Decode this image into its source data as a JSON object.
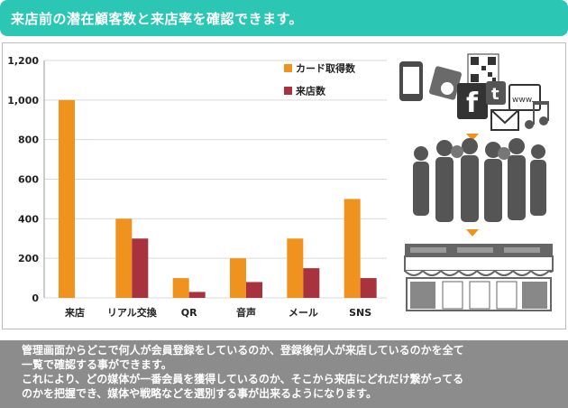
{
  "header": {
    "title": "来店前の潜在顧客数と来店率を確認できます。"
  },
  "chart_data": {
    "type": "bar",
    "categories": [
      "来店",
      "リアル交換",
      "QR",
      "音声",
      "メール",
      "SNS"
    ],
    "series": [
      {
        "name": "カード取得数",
        "color": "#f0931e",
        "values": [
          1000,
          400,
          100,
          200,
          300,
          500
        ]
      },
      {
        "name": "来店数",
        "color": "#a8323e",
        "values": [
          0,
          300,
          30,
          80,
          150,
          100
        ]
      }
    ],
    "yticks": [
      "0",
      "200",
      "400",
      "600",
      "800",
      "1,000",
      "1,200"
    ],
    "ylim": [
      0,
      1200
    ],
    "grid": true,
    "legend": "top-right"
  },
  "illustration": {
    "icons": [
      "smartphone-icon",
      "qr-code-icon",
      "facebook-icon",
      "twitter-icon",
      "web-icon",
      "mail-icon",
      "music-note-icon",
      "crowd-icon",
      "storefront-icon"
    ],
    "arrow_color": "#f0931e",
    "silhouette_color": "#555555"
  },
  "footer": {
    "lines": [
      "管理画面からどこで何人が会員登録をしているのか、登録後何人が来店しているのかを全て",
      "一覧で確認する事ができます。",
      "これにより、どの媒体が一番会員を獲得しているのか、そこから来店にどれだけ繋がってる",
      "のかを把握でき、媒体や戦略などを選別する事が出来るようになります。"
    ]
  }
}
